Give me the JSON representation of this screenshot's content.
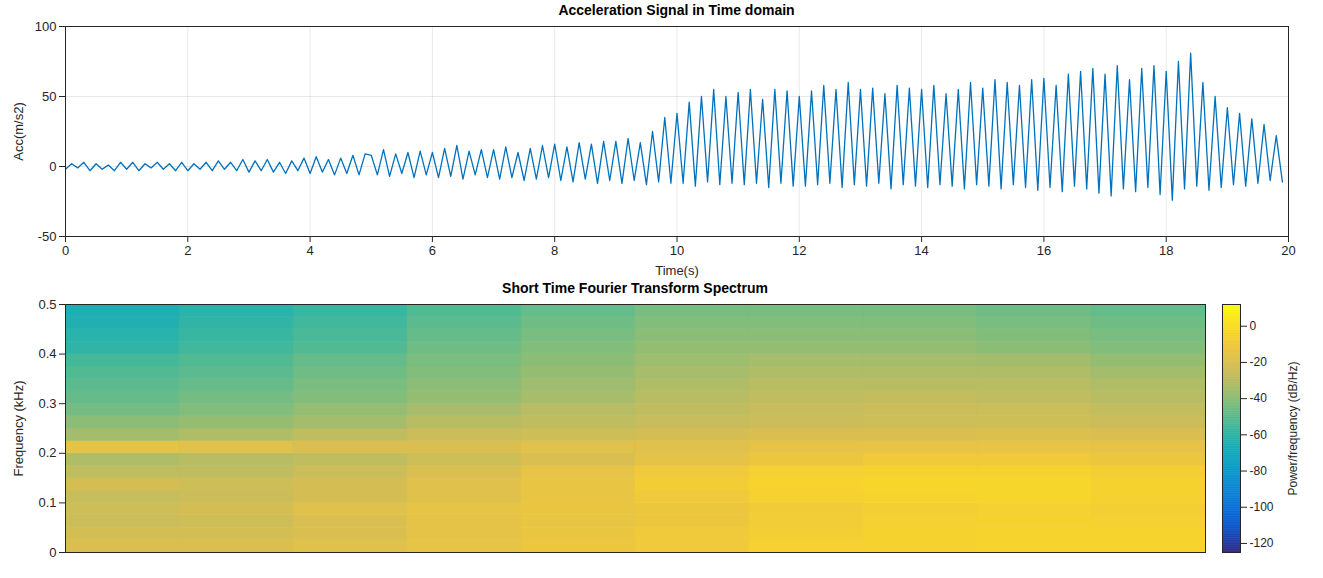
{
  "chart_data": [
    {
      "type": "line",
      "title": "Acceleration Signal in Time domain",
      "xlabel": "Time(s)",
      "ylabel": "Acc(m/s2)",
      "xlim": [
        0,
        20
      ],
      "xticks": [
        0,
        2,
        4,
        6,
        8,
        10,
        12,
        14,
        16,
        18,
        20
      ],
      "ylim": [
        -50,
        100
      ],
      "yticks": [
        -50,
        0,
        50,
        100
      ],
      "grid": true,
      "color": "#0072bd",
      "x": [
        0,
        0.1,
        0.2,
        0.3,
        0.4,
        0.5,
        0.6,
        0.7,
        0.8,
        0.9,
        1,
        1.1,
        1.2,
        1.3,
        1.4,
        1.5,
        1.6,
        1.7,
        1.8,
        1.9,
        2,
        2.1,
        2.2,
        2.3,
        2.4,
        2.5,
        2.6,
        2.7,
        2.8,
        2.9,
        3,
        3.1,
        3.2,
        3.3,
        3.4,
        3.5,
        3.6,
        3.7,
        3.8,
        3.9,
        4,
        4.1,
        4.2,
        4.3,
        4.4,
        4.5,
        4.6,
        4.7,
        4.8,
        4.9,
        5,
        5.1,
        5.2,
        5.3,
        5.4,
        5.5,
        5.6,
        5.7,
        5.8,
        5.9,
        6,
        6.1,
        6.2,
        6.3,
        6.4,
        6.5,
        6.6,
        6.7,
        6.8,
        6.9,
        7,
        7.1,
        7.2,
        7.3,
        7.4,
        7.5,
        7.6,
        7.7,
        7.8,
        7.9,
        8,
        8.1,
        8.2,
        8.3,
        8.4,
        8.5,
        8.6,
        8.7,
        8.8,
        8.9,
        9,
        9.1,
        9.2,
        9.3,
        9.4,
        9.5,
        9.6,
        9.7,
        9.8,
        9.9,
        10,
        10.1,
        10.2,
        10.3,
        10.4,
        10.5,
        10.6,
        10.7,
        10.8,
        10.9,
        11,
        11.1,
        11.2,
        11.3,
        11.4,
        11.5,
        11.6,
        11.7,
        11.8,
        11.9,
        12,
        12.1,
        12.2,
        12.3,
        12.4,
        12.5,
        12.6,
        12.7,
        12.8,
        12.9,
        13,
        13.1,
        13.2,
        13.3,
        13.4,
        13.5,
        13.6,
        13.7,
        13.8,
        13.9,
        14,
        14.1,
        14.2,
        14.3,
        14.4,
        14.5,
        14.6,
        14.7,
        14.8,
        14.9,
        15,
        15.1,
        15.2,
        15.3,
        15.4,
        15.5,
        15.6,
        15.7,
        15.8,
        15.9,
        16,
        16.1,
        16.2,
        16.3,
        16.4,
        16.5,
        16.6,
        16.7,
        16.8,
        16.9,
        17,
        17.1,
        17.2,
        17.3,
        17.4,
        17.5,
        17.6,
        17.7,
        17.8,
        17.9,
        18,
        18.1,
        18.2,
        18.3,
        18.4,
        18.5,
        18.6,
        18.7,
        18.8,
        18.9,
        19,
        19.1,
        19.2,
        19.3,
        19.4,
        19.5,
        19.6,
        19.7,
        19.8,
        19.9
      ],
      "values": [
        -2,
        2,
        -1,
        3,
        -3,
        2,
        -2,
        1,
        -3,
        3,
        -2,
        3,
        -3,
        2,
        -1,
        3,
        -2,
        2,
        -3,
        3,
        -3,
        2,
        -2,
        3,
        -3,
        4,
        -2,
        3,
        -3,
        5,
        -4,
        4,
        -3,
        5,
        -4,
        3,
        -5,
        4,
        -3,
        6,
        -5,
        7,
        -4,
        5,
        -6,
        6,
        -5,
        8,
        -6,
        9,
        8,
        -6,
        12,
        -7,
        9,
        -5,
        10,
        -8,
        11,
        -6,
        10,
        -8,
        13,
        -7,
        15,
        -9,
        11,
        -6,
        12,
        -8,
        12,
        -9,
        14,
        -8,
        10,
        -10,
        13,
        -9,
        15,
        -8,
        16,
        -10,
        14,
        -11,
        17,
        -9,
        16,
        -12,
        18,
        -10,
        18,
        -12,
        20,
        -10,
        17,
        -13,
        25,
        -11,
        35,
        -12,
        38,
        -12,
        46,
        -14,
        50,
        -11,
        55,
        -13,
        50,
        -12,
        53,
        -13,
        55,
        -12,
        48,
        -15,
        55,
        -12,
        54,
        -14,
        50,
        -14,
        54,
        -13,
        58,
        -12,
        55,
        -15,
        60,
        -13,
        55,
        -14,
        56,
        -12,
        52,
        -16,
        58,
        -13,
        56,
        -14,
        55,
        -15,
        58,
        -13,
        52,
        -14,
        55,
        -16,
        60,
        -13,
        56,
        -14,
        62,
        -16,
        60,
        -13,
        58,
        -15,
        62,
        -17,
        63,
        -15,
        58,
        -18,
        66,
        -14,
        68,
        -16,
        70,
        -19,
        66,
        -21,
        72,
        -16,
        62,
        -18,
        70,
        -15,
        72,
        -20,
        68,
        -24,
        75,
        -16,
        81,
        -14,
        60,
        -17,
        50,
        -15,
        42,
        -13,
        38,
        -14,
        34,
        -12,
        30,
        -10,
        22,
        -11
      ]
    },
    {
      "type": "heatmap",
      "title": "Short Time Fourier Transform Spectrum",
      "ylabel": "Frequency (kHz)",
      "xlim": [
        0,
        20
      ],
      "ylim": [
        0,
        0.5
      ],
      "yticks": [
        0,
        0.1,
        0.2,
        0.3,
        0.4,
        0.5
      ],
      "tick_labels": "y",
      "grid": false,
      "time_edges": [
        0,
        2,
        4,
        6,
        8,
        10,
        12,
        14,
        16,
        18,
        20
      ],
      "freq_edges": [
        0,
        0.025,
        0.05,
        0.075,
        0.1,
        0.125,
        0.15,
        0.175,
        0.2,
        0.225,
        0.25,
        0.275,
        0.3,
        0.325,
        0.35,
        0.375,
        0.4,
        0.425,
        0.45,
        0.475,
        0.5
      ],
      "power": [
        [
          -20,
          -20,
          -18,
          -15,
          -12,
          -10,
          -6,
          -5,
          -4,
          -4
        ],
        [
          -22,
          -22,
          -20,
          -16,
          -13,
          -10,
          -7,
          -5,
          -4,
          -4
        ],
        [
          -25,
          -24,
          -20,
          -16,
          -14,
          -12,
          -8,
          -6,
          -5,
          -6
        ],
        [
          -24,
          -22,
          -18,
          -15,
          -13,
          -12,
          -9,
          -7,
          -6,
          -7
        ],
        [
          -26,
          -25,
          -22,
          -18,
          -14,
          -10,
          -6,
          -4,
          -3,
          -5
        ],
        [
          -22,
          -24,
          -22,
          -18,
          -14,
          -8,
          -4,
          -3,
          -3,
          -5
        ],
        [
          -28,
          -28,
          -25,
          -20,
          -15,
          -10,
          -6,
          -5,
          -5,
          -7
        ],
        [
          -32,
          -30,
          -28,
          -24,
          -20,
          -16,
          -12,
          -10,
          -10,
          -12
        ],
        [
          -16,
          -18,
          -20,
          -20,
          -18,
          -18,
          -16,
          -15,
          -15,
          -16
        ],
        [
          -35,
          -32,
          -28,
          -25,
          -24,
          -22,
          -20,
          -20,
          -19,
          -20
        ],
        [
          -40,
          -38,
          -35,
          -30,
          -28,
          -26,
          -25,
          -24,
          -24,
          -25
        ],
        [
          -45,
          -42,
          -38,
          -34,
          -30,
          -28,
          -26,
          -25,
          -25,
          -27
        ],
        [
          -48,
          -45,
          -42,
          -38,
          -34,
          -30,
          -28,
          -27,
          -28,
          -30
        ],
        [
          -50,
          -48,
          -44,
          -40,
          -36,
          -32,
          -30,
          -30,
          -30,
          -32
        ],
        [
          -52,
          -50,
          -46,
          -42,
          -38,
          -34,
          -32,
          -32,
          -32,
          -35
        ],
        [
          -55,
          -52,
          -48,
          -44,
          -40,
          -36,
          -34,
          -34,
          -35,
          -38
        ],
        [
          -60,
          -56,
          -52,
          -46,
          -42,
          -38,
          -38,
          -38,
          -40,
          -42
        ],
        [
          -62,
          -58,
          -54,
          -48,
          -44,
          -40,
          -40,
          -40,
          -42,
          -44
        ],
        [
          -65,
          -60,
          -56,
          -50,
          -46,
          -42,
          -42,
          -42,
          -44,
          -46
        ],
        [
          -66,
          -62,
          -58,
          -52,
          -48,
          -44,
          -44,
          -44,
          -46,
          -48
        ]
      ],
      "colorbar": {
        "label": "Power/frequency (dB/Hz)",
        "lim": [
          -125,
          12
        ],
        "ticks": [
          0,
          -20,
          -40,
          -60,
          -80,
          -100,
          -120
        ]
      }
    }
  ]
}
